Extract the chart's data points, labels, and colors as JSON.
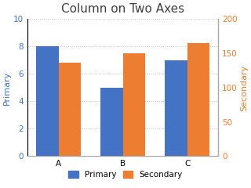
{
  "title": "Column on Two Axes",
  "categories": [
    "A",
    "B",
    "C"
  ],
  "primary_values": [
    8,
    5,
    7
  ],
  "secondary_values": [
    136,
    150,
    165
  ],
  "primary_color": "#4472C4",
  "secondary_color": "#ED7D31",
  "primary_label": "Primary",
  "secondary_label": "Secondary",
  "primary_ylim": [
    0,
    10
  ],
  "primary_yticks": [
    0,
    2,
    4,
    6,
    8,
    10
  ],
  "secondary_ylim": [
    0,
    200
  ],
  "secondary_yticks": [
    0,
    50,
    100,
    150,
    200
  ],
  "left_axis_color": "#4472C4",
  "right_axis_color": "#ED7D31",
  "background_color": "#ffffff",
  "title_fontsize": 11,
  "label_fontsize": 8,
  "tick_fontsize": 7.5,
  "legend_fontsize": 7.5,
  "bar_width": 0.35,
  "grid_color": "#C0C0C0",
  "grid_linestyle": ":"
}
